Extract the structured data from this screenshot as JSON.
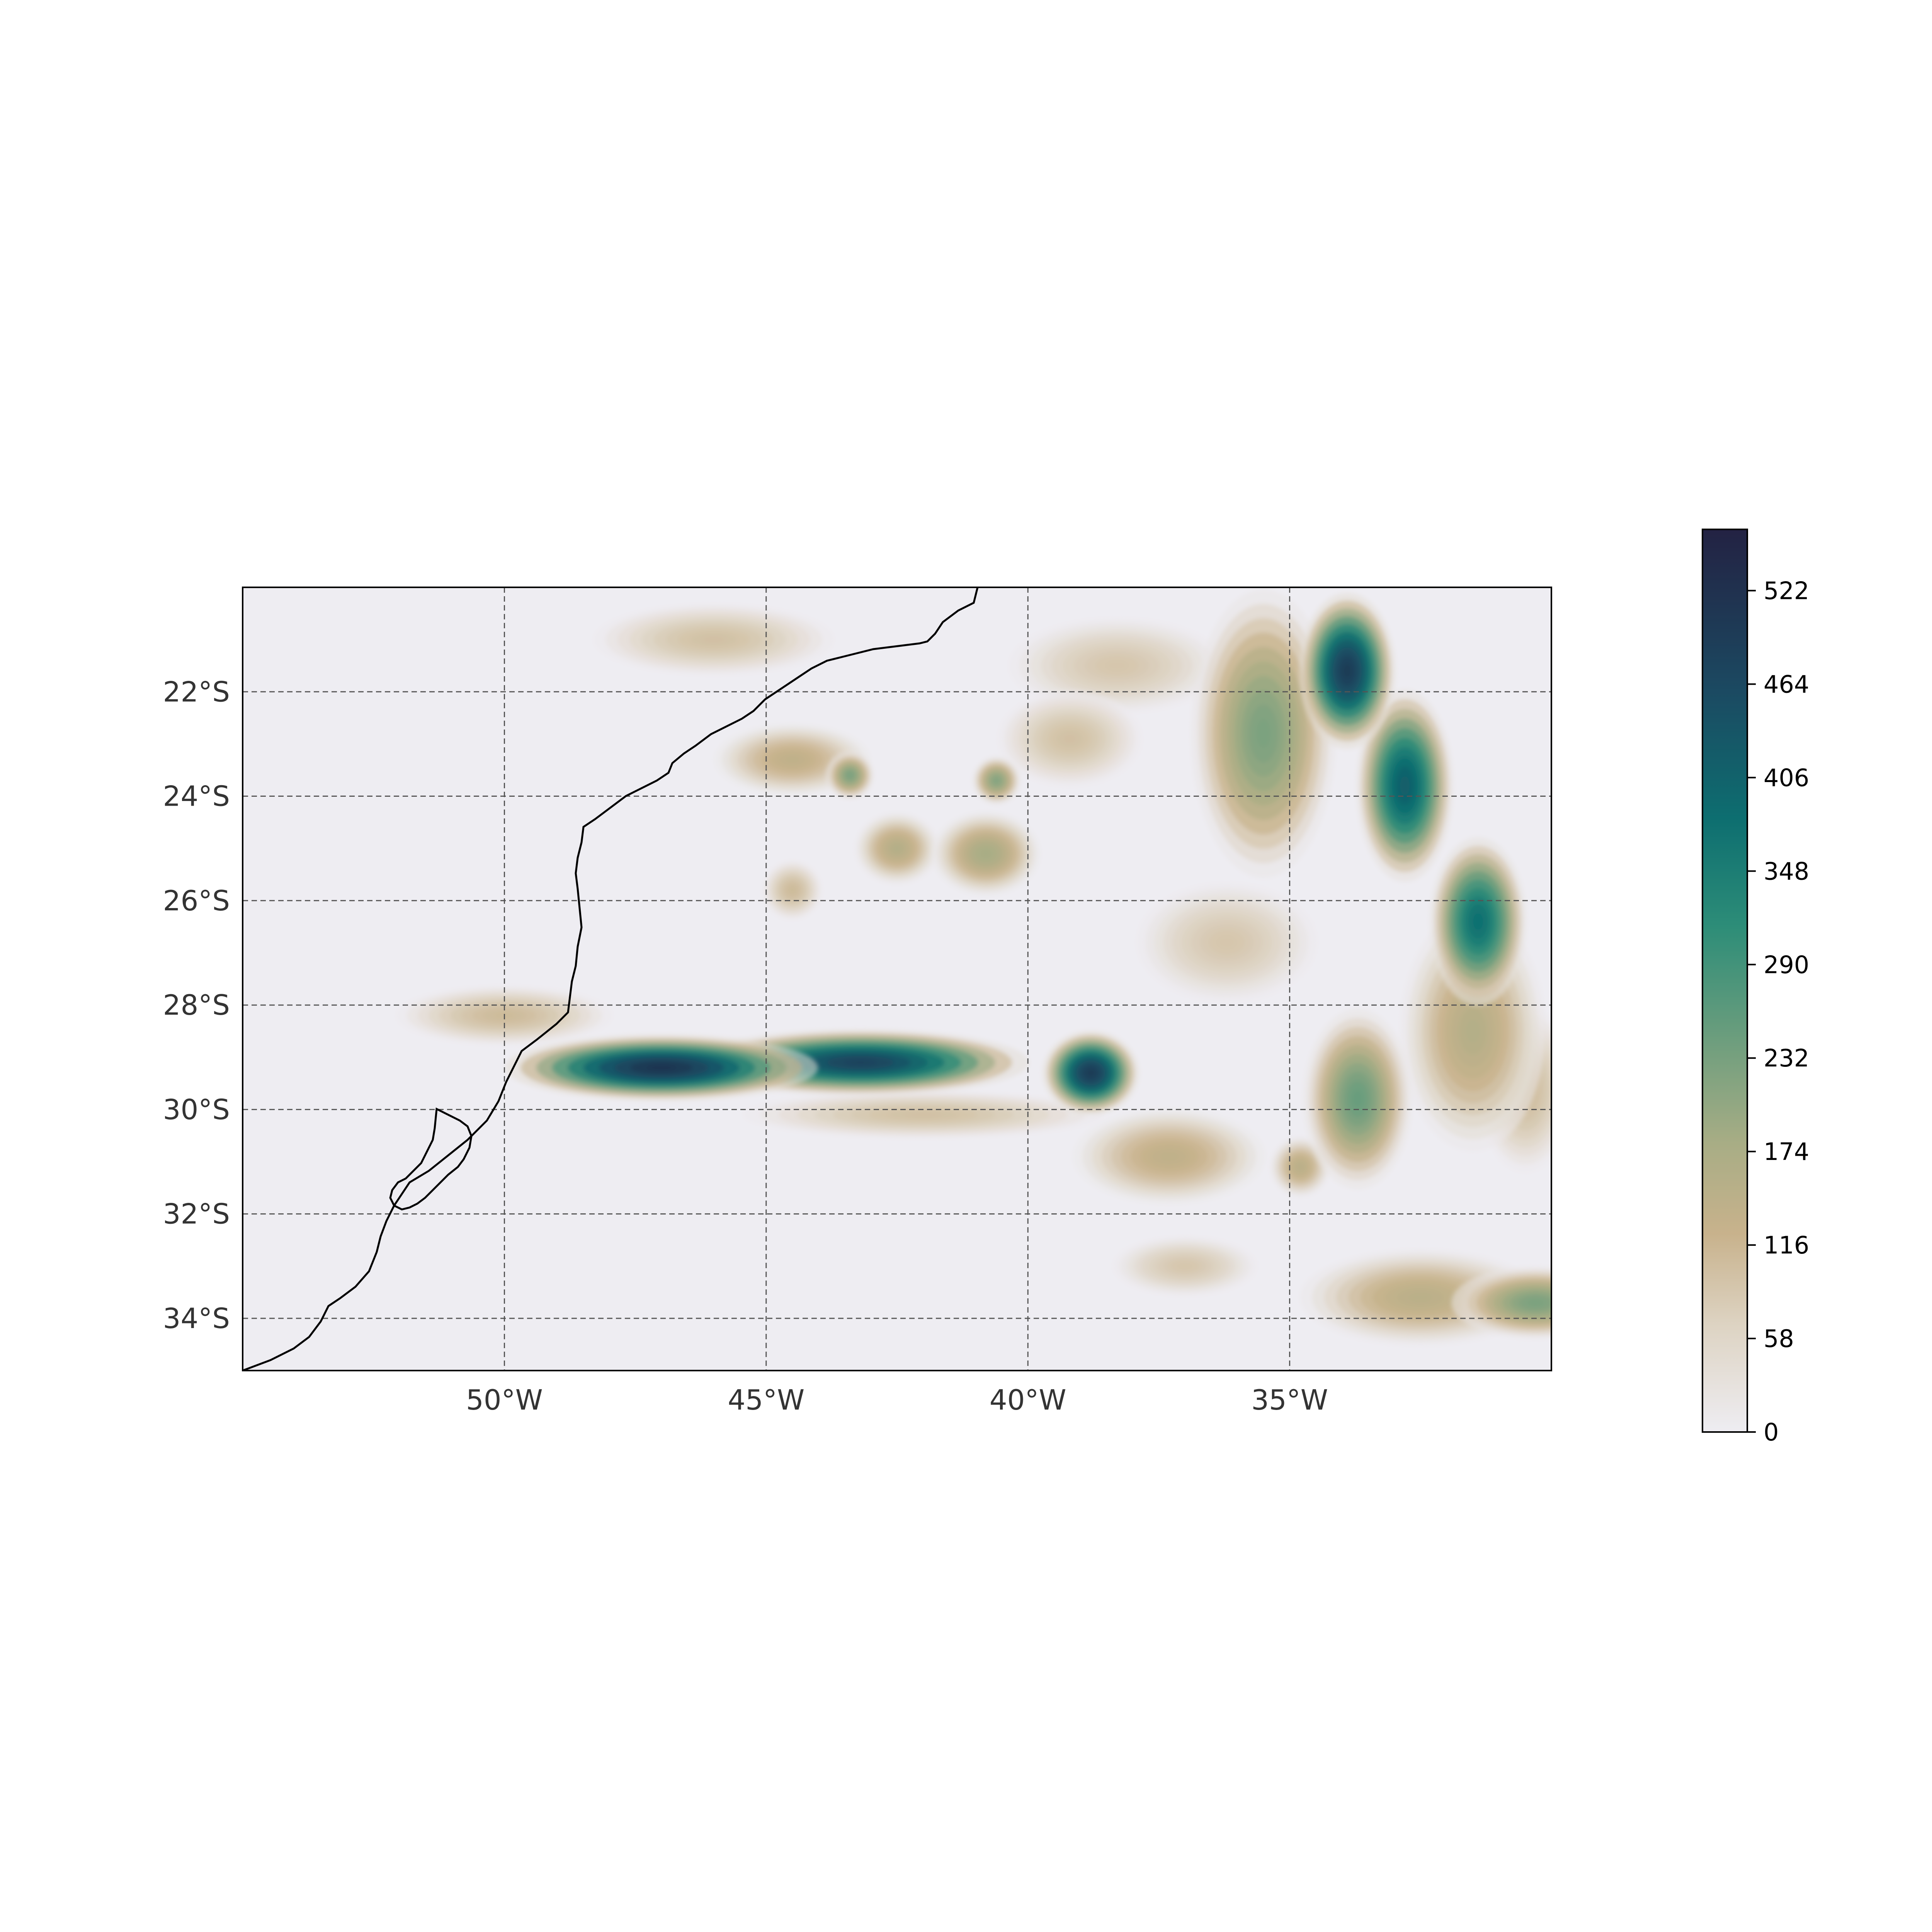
{
  "map": {
    "lon_range": [
      -55,
      -30
    ],
    "lat_range": [
      -35,
      -20
    ],
    "gridlines": "dashed",
    "lon_ticks": [
      {
        "value": -50,
        "label": "50°W"
      },
      {
        "value": -45,
        "label": "45°W"
      },
      {
        "value": -40,
        "label": "40°W"
      },
      {
        "value": -35,
        "label": "35°W"
      }
    ],
    "lat_ticks": [
      {
        "value": -22,
        "label": "22°S"
      },
      {
        "value": -24,
        "label": "24°S"
      },
      {
        "value": -26,
        "label": "26°S"
      },
      {
        "value": -28,
        "label": "28°S"
      },
      {
        "value": -30,
        "label": "30°S"
      },
      {
        "value": -32,
        "label": "32°S"
      },
      {
        "value": -34,
        "label": "34°S"
      }
    ],
    "coastline_color": "#000000",
    "grid_color": "#555555",
    "background_color": "#eeedf2"
  },
  "colorbar": {
    "ticks": [
      0,
      58,
      116,
      174,
      232,
      290,
      348,
      406,
      464,
      522
    ],
    "tick_labels": [
      "0",
      "58",
      "116",
      "174",
      "232",
      "290",
      "348",
      "406",
      "464",
      "522"
    ],
    "range": [
      0,
      560
    ],
    "colormap": "rain",
    "colors": [
      "#eeedf2",
      "#d8c6a4",
      "#c7b08a",
      "#8fa97a",
      "#3f9a7b",
      "#0b7572",
      "#1a4a62",
      "#232243"
    ]
  },
  "chart_data": {
    "type": "heatmap",
    "title": "",
    "xlabel": "",
    "ylabel": "",
    "xlim": [
      -55,
      -30
    ],
    "ylim": [
      -35,
      -20
    ],
    "zlim": [
      0,
      560
    ],
    "features": [
      {
        "lon": -47.0,
        "lat": -29.2,
        "peak": 520,
        "rx": 2.6,
        "ry": 0.55
      },
      {
        "lon": -43.2,
        "lat": -29.1,
        "peak": 480,
        "rx": 2.8,
        "ry": 0.55
      },
      {
        "lon": -38.8,
        "lat": -29.3,
        "peak": 500,
        "rx": 0.8,
        "ry": 0.7
      },
      {
        "lon": -33.9,
        "lat": -21.6,
        "peak": 500,
        "rx": 0.8,
        "ry": 1.3
      },
      {
        "lon": -32.8,
        "lat": -23.8,
        "peak": 420,
        "rx": 0.8,
        "ry": 1.6
      },
      {
        "lon": -31.4,
        "lat": -26.4,
        "peak": 380,
        "rx": 0.8,
        "ry": 1.4
      },
      {
        "lon": -33.7,
        "lat": -29.8,
        "peak": 250,
        "rx": 0.9,
        "ry": 1.5
      },
      {
        "lon": -35.5,
        "lat": -22.8,
        "peak": 230,
        "rx": 1.2,
        "ry": 2.4
      },
      {
        "lon": -30.3,
        "lat": -33.7,
        "peak": 230,
        "rx": 1.4,
        "ry": 0.6
      },
      {
        "lon": -43.4,
        "lat": -23.6,
        "peak": 230,
        "rx": 0.4,
        "ry": 0.4
      },
      {
        "lon": -40.6,
        "lat": -23.7,
        "peak": 220,
        "rx": 0.4,
        "ry": 0.4
      },
      {
        "lon": -40.8,
        "lat": -25.1,
        "peak": 180,
        "rx": 0.9,
        "ry": 0.7
      },
      {
        "lon": -42.5,
        "lat": -25.0,
        "peak": 160,
        "rx": 0.7,
        "ry": 0.6
      },
      {
        "lon": -44.5,
        "lat": -25.8,
        "peak": 110,
        "rx": 0.5,
        "ry": 0.5
      },
      {
        "lon": -50.0,
        "lat": -28.2,
        "peak": 110,
        "rx": 1.8,
        "ry": 0.5
      },
      {
        "lon": -32.5,
        "lat": -33.6,
        "peak": 150,
        "rx": 2.0,
        "ry": 0.8
      },
      {
        "lon": -37.3,
        "lat": -30.9,
        "peak": 140,
        "rx": 1.6,
        "ry": 0.8
      },
      {
        "lon": -34.8,
        "lat": -31.1,
        "peak": 150,
        "rx": 0.5,
        "ry": 0.5
      },
      {
        "lon": -44.5,
        "lat": -23.3,
        "peak": 140,
        "rx": 1.3,
        "ry": 0.6
      },
      {
        "lon": -46.0,
        "lat": -21.0,
        "peak": 100,
        "rx": 2.0,
        "ry": 0.6
      },
      {
        "lon": -39.2,
        "lat": -22.9,
        "peak": 100,
        "rx": 1.2,
        "ry": 0.8
      },
      {
        "lon": -36.2,
        "lat": -26.8,
        "peak": 90,
        "rx": 1.5,
        "ry": 1.0
      },
      {
        "lon": -31.5,
        "lat": -28.5,
        "peak": 160,
        "rx": 1.2,
        "ry": 2.0
      },
      {
        "lon": -37.0,
        "lat": -33.0,
        "peak": 90,
        "rx": 1.2,
        "ry": 0.5
      },
      {
        "lon": -42.0,
        "lat": -30.1,
        "peak": 100,
        "rx": 3.0,
        "ry": 0.4
      },
      {
        "lon": -38.3,
        "lat": -21.5,
        "peak": 90,
        "rx": 1.8,
        "ry": 0.8
      },
      {
        "lon": -30.5,
        "lat": -29.6,
        "peak": 110,
        "rx": 0.8,
        "ry": 1.4
      }
    ]
  }
}
